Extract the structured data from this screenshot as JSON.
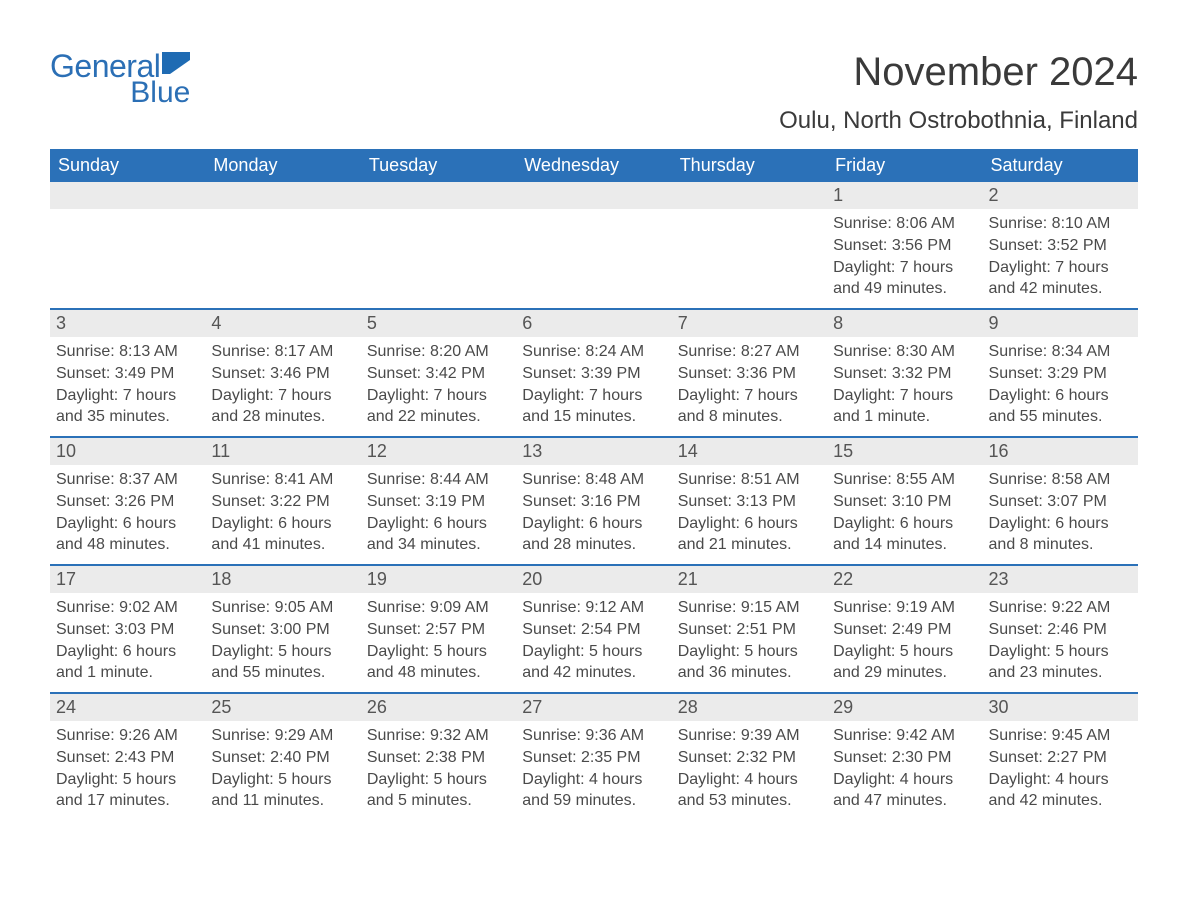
{
  "brand": {
    "text_general": "General",
    "text_blue": "Blue",
    "accent_color": "#2b6fb5",
    "flag_color": "#1f6bb3"
  },
  "header": {
    "month_title": "November 2024",
    "location": "Oulu, North Ostrobothnia, Finland"
  },
  "colors": {
    "header_bg": "#2b71b8",
    "header_text": "#ffffff",
    "daynum_bg": "#ebebeb",
    "body_text": "#4a4a4a",
    "row_border": "#2b71b8",
    "page_bg": "#ffffff"
  },
  "typography": {
    "title_fontsize": 40,
    "location_fontsize": 24,
    "dayheader_fontsize": 18,
    "daynum_fontsize": 18,
    "body_fontsize": 16,
    "font_family": "Arial"
  },
  "day_headers": [
    "Sunday",
    "Monday",
    "Tuesday",
    "Wednesday",
    "Thursday",
    "Friday",
    "Saturday"
  ],
  "weeks": [
    [
      {
        "day": "",
        "sunrise": "",
        "sunset": "",
        "daylight1": "",
        "daylight2": ""
      },
      {
        "day": "",
        "sunrise": "",
        "sunset": "",
        "daylight1": "",
        "daylight2": ""
      },
      {
        "day": "",
        "sunrise": "",
        "sunset": "",
        "daylight1": "",
        "daylight2": ""
      },
      {
        "day": "",
        "sunrise": "",
        "sunset": "",
        "daylight1": "",
        "daylight2": ""
      },
      {
        "day": "",
        "sunrise": "",
        "sunset": "",
        "daylight1": "",
        "daylight2": ""
      },
      {
        "day": "1",
        "sunrise": "Sunrise: 8:06 AM",
        "sunset": "Sunset: 3:56 PM",
        "daylight1": "Daylight: 7 hours",
        "daylight2": "and 49 minutes."
      },
      {
        "day": "2",
        "sunrise": "Sunrise: 8:10 AM",
        "sunset": "Sunset: 3:52 PM",
        "daylight1": "Daylight: 7 hours",
        "daylight2": "and 42 minutes."
      }
    ],
    [
      {
        "day": "3",
        "sunrise": "Sunrise: 8:13 AM",
        "sunset": "Sunset: 3:49 PM",
        "daylight1": "Daylight: 7 hours",
        "daylight2": "and 35 minutes."
      },
      {
        "day": "4",
        "sunrise": "Sunrise: 8:17 AM",
        "sunset": "Sunset: 3:46 PM",
        "daylight1": "Daylight: 7 hours",
        "daylight2": "and 28 minutes."
      },
      {
        "day": "5",
        "sunrise": "Sunrise: 8:20 AM",
        "sunset": "Sunset: 3:42 PM",
        "daylight1": "Daylight: 7 hours",
        "daylight2": "and 22 minutes."
      },
      {
        "day": "6",
        "sunrise": "Sunrise: 8:24 AM",
        "sunset": "Sunset: 3:39 PM",
        "daylight1": "Daylight: 7 hours",
        "daylight2": "and 15 minutes."
      },
      {
        "day": "7",
        "sunrise": "Sunrise: 8:27 AM",
        "sunset": "Sunset: 3:36 PM",
        "daylight1": "Daylight: 7 hours",
        "daylight2": "and 8 minutes."
      },
      {
        "day": "8",
        "sunrise": "Sunrise: 8:30 AM",
        "sunset": "Sunset: 3:32 PM",
        "daylight1": "Daylight: 7 hours",
        "daylight2": "and 1 minute."
      },
      {
        "day": "9",
        "sunrise": "Sunrise: 8:34 AM",
        "sunset": "Sunset: 3:29 PM",
        "daylight1": "Daylight: 6 hours",
        "daylight2": "and 55 minutes."
      }
    ],
    [
      {
        "day": "10",
        "sunrise": "Sunrise: 8:37 AM",
        "sunset": "Sunset: 3:26 PM",
        "daylight1": "Daylight: 6 hours",
        "daylight2": "and 48 minutes."
      },
      {
        "day": "11",
        "sunrise": "Sunrise: 8:41 AM",
        "sunset": "Sunset: 3:22 PM",
        "daylight1": "Daylight: 6 hours",
        "daylight2": "and 41 minutes."
      },
      {
        "day": "12",
        "sunrise": "Sunrise: 8:44 AM",
        "sunset": "Sunset: 3:19 PM",
        "daylight1": "Daylight: 6 hours",
        "daylight2": "and 34 minutes."
      },
      {
        "day": "13",
        "sunrise": "Sunrise: 8:48 AM",
        "sunset": "Sunset: 3:16 PM",
        "daylight1": "Daylight: 6 hours",
        "daylight2": "and 28 minutes."
      },
      {
        "day": "14",
        "sunrise": "Sunrise: 8:51 AM",
        "sunset": "Sunset: 3:13 PM",
        "daylight1": "Daylight: 6 hours",
        "daylight2": "and 21 minutes."
      },
      {
        "day": "15",
        "sunrise": "Sunrise: 8:55 AM",
        "sunset": "Sunset: 3:10 PM",
        "daylight1": "Daylight: 6 hours",
        "daylight2": "and 14 minutes."
      },
      {
        "day": "16",
        "sunrise": "Sunrise: 8:58 AM",
        "sunset": "Sunset: 3:07 PM",
        "daylight1": "Daylight: 6 hours",
        "daylight2": "and 8 minutes."
      }
    ],
    [
      {
        "day": "17",
        "sunrise": "Sunrise: 9:02 AM",
        "sunset": "Sunset: 3:03 PM",
        "daylight1": "Daylight: 6 hours",
        "daylight2": "and 1 minute."
      },
      {
        "day": "18",
        "sunrise": "Sunrise: 9:05 AM",
        "sunset": "Sunset: 3:00 PM",
        "daylight1": "Daylight: 5 hours",
        "daylight2": "and 55 minutes."
      },
      {
        "day": "19",
        "sunrise": "Sunrise: 9:09 AM",
        "sunset": "Sunset: 2:57 PM",
        "daylight1": "Daylight: 5 hours",
        "daylight2": "and 48 minutes."
      },
      {
        "day": "20",
        "sunrise": "Sunrise: 9:12 AM",
        "sunset": "Sunset: 2:54 PM",
        "daylight1": "Daylight: 5 hours",
        "daylight2": "and 42 minutes."
      },
      {
        "day": "21",
        "sunrise": "Sunrise: 9:15 AM",
        "sunset": "Sunset: 2:51 PM",
        "daylight1": "Daylight: 5 hours",
        "daylight2": "and 36 minutes."
      },
      {
        "day": "22",
        "sunrise": "Sunrise: 9:19 AM",
        "sunset": "Sunset: 2:49 PM",
        "daylight1": "Daylight: 5 hours",
        "daylight2": "and 29 minutes."
      },
      {
        "day": "23",
        "sunrise": "Sunrise: 9:22 AM",
        "sunset": "Sunset: 2:46 PM",
        "daylight1": "Daylight: 5 hours",
        "daylight2": "and 23 minutes."
      }
    ],
    [
      {
        "day": "24",
        "sunrise": "Sunrise: 9:26 AM",
        "sunset": "Sunset: 2:43 PM",
        "daylight1": "Daylight: 5 hours",
        "daylight2": "and 17 minutes."
      },
      {
        "day": "25",
        "sunrise": "Sunrise: 9:29 AM",
        "sunset": "Sunset: 2:40 PM",
        "daylight1": "Daylight: 5 hours",
        "daylight2": "and 11 minutes."
      },
      {
        "day": "26",
        "sunrise": "Sunrise: 9:32 AM",
        "sunset": "Sunset: 2:38 PM",
        "daylight1": "Daylight: 5 hours",
        "daylight2": "and 5 minutes."
      },
      {
        "day": "27",
        "sunrise": "Sunrise: 9:36 AM",
        "sunset": "Sunset: 2:35 PM",
        "daylight1": "Daylight: 4 hours",
        "daylight2": "and 59 minutes."
      },
      {
        "day": "28",
        "sunrise": "Sunrise: 9:39 AM",
        "sunset": "Sunset: 2:32 PM",
        "daylight1": "Daylight: 4 hours",
        "daylight2": "and 53 minutes."
      },
      {
        "day": "29",
        "sunrise": "Sunrise: 9:42 AM",
        "sunset": "Sunset: 2:30 PM",
        "daylight1": "Daylight: 4 hours",
        "daylight2": "and 47 minutes."
      },
      {
        "day": "30",
        "sunrise": "Sunrise: 9:45 AM",
        "sunset": "Sunset: 2:27 PM",
        "daylight1": "Daylight: 4 hours",
        "daylight2": "and 42 minutes."
      }
    ]
  ]
}
